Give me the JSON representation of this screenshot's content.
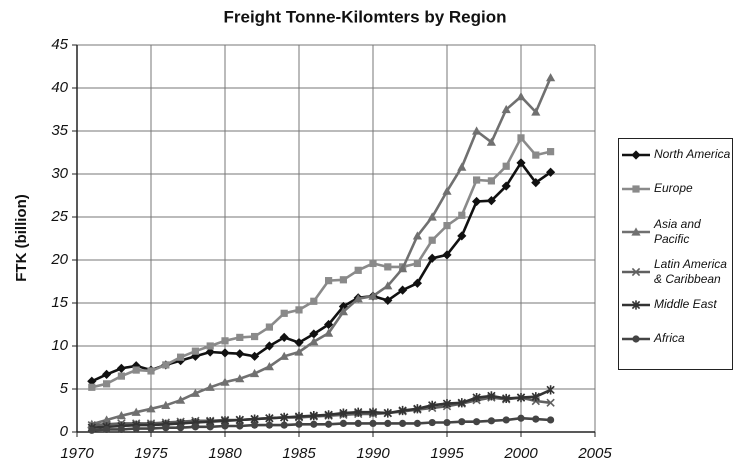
{
  "chart_data": {
    "type": "line",
    "title": "Freight Tonne-Kilomters by Region",
    "y_label": "FTK (billion)",
    "x": [
      1971,
      1972,
      1973,
      1974,
      1975,
      1976,
      1977,
      1978,
      1979,
      1980,
      1981,
      1982,
      1983,
      1984,
      1985,
      1986,
      1987,
      1988,
      1989,
      1990,
      1991,
      1992,
      1993,
      1994,
      1995,
      1996,
      1997,
      1998,
      1999,
      2000,
      2001,
      2002
    ],
    "xlim": [
      1970,
      2005
    ],
    "xticks": [
      1970,
      1975,
      1980,
      1985,
      1990,
      1995,
      2000,
      2005
    ],
    "ylim": [
      0,
      45
    ],
    "yticks": [
      0,
      5,
      10,
      15,
      20,
      25,
      30,
      35,
      40,
      45
    ],
    "grid": true,
    "legend": "right",
    "series": [
      {
        "name": "North America",
        "color": "#111111",
        "marker": "diamond",
        "values": [
          5.9,
          6.7,
          7.4,
          7.7,
          7.2,
          7.8,
          8.3,
          8.8,
          9.3,
          9.2,
          9.1,
          8.8,
          10.0,
          11.0,
          10.4,
          11.4,
          12.5,
          14.6,
          15.6,
          15.8,
          15.3,
          16.5,
          17.3,
          20.2,
          20.6,
          22.8,
          26.8,
          26.9,
          28.6,
          31.3,
          29.0,
          30.2
        ]
      },
      {
        "name": "Europe",
        "color": "#8a8a8a",
        "marker": "square",
        "values": [
          5.2,
          5.6,
          6.5,
          7.2,
          7.1,
          7.8,
          8.7,
          9.4,
          10.0,
          10.6,
          11.0,
          11.1,
          12.2,
          13.8,
          14.2,
          15.2,
          17.6,
          17.7,
          18.8,
          19.6,
          19.2,
          19.2,
          19.6,
          22.3,
          24.0,
          25.2,
          29.3,
          29.2,
          30.9,
          34.2,
          32.2,
          32.6
        ]
      },
      {
        "name": "Asia and Pacific",
        "color": "#707070",
        "marker": "triangle",
        "values": [
          0.9,
          1.4,
          1.9,
          2.3,
          2.7,
          3.1,
          3.7,
          4.5,
          5.2,
          5.8,
          6.2,
          6.8,
          7.6,
          8.8,
          9.3,
          10.5,
          11.5,
          14.0,
          15.5,
          15.8,
          17.0,
          19.0,
          22.8,
          25.0,
          28.0,
          30.8,
          35.0,
          33.7,
          37.5,
          39.0,
          37.2,
          41.2
        ]
      },
      {
        "name": "Latin America & Caribbean",
        "color": "#606060",
        "marker": "x",
        "values": [
          0.8,
          0.9,
          1.0,
          1.0,
          1.0,
          1.1,
          1.2,
          1.3,
          1.3,
          1.4,
          1.4,
          1.5,
          1.6,
          1.7,
          1.7,
          1.8,
          1.9,
          2.0,
          2.1,
          2.1,
          2.2,
          2.4,
          2.6,
          2.8,
          3.0,
          3.3,
          3.7,
          4.0,
          3.8,
          4.0,
          3.6,
          3.4
        ]
      },
      {
        "name": "Middle East",
        "color": "#333333",
        "marker": "asterisk",
        "values": [
          0.5,
          0.6,
          0.7,
          0.8,
          0.8,
          0.9,
          1.0,
          1.1,
          1.2,
          1.3,
          1.4,
          1.5,
          1.6,
          1.7,
          1.8,
          1.9,
          2.0,
          2.2,
          2.3,
          2.3,
          2.2,
          2.5,
          2.7,
          3.1,
          3.3,
          3.4,
          4.0,
          4.2,
          3.9,
          4.0,
          4.1,
          4.9
        ]
      },
      {
        "name": "Africa",
        "color": "#444444",
        "marker": "circle",
        "values": [
          0.2,
          0.3,
          0.3,
          0.4,
          0.4,
          0.5,
          0.5,
          0.6,
          0.6,
          0.7,
          0.7,
          0.8,
          0.8,
          0.8,
          0.9,
          0.9,
          0.9,
          1.0,
          1.0,
          1.0,
          1.0,
          1.0,
          1.0,
          1.1,
          1.1,
          1.2,
          1.2,
          1.3,
          1.4,
          1.6,
          1.5,
          1.4
        ]
      }
    ]
  }
}
